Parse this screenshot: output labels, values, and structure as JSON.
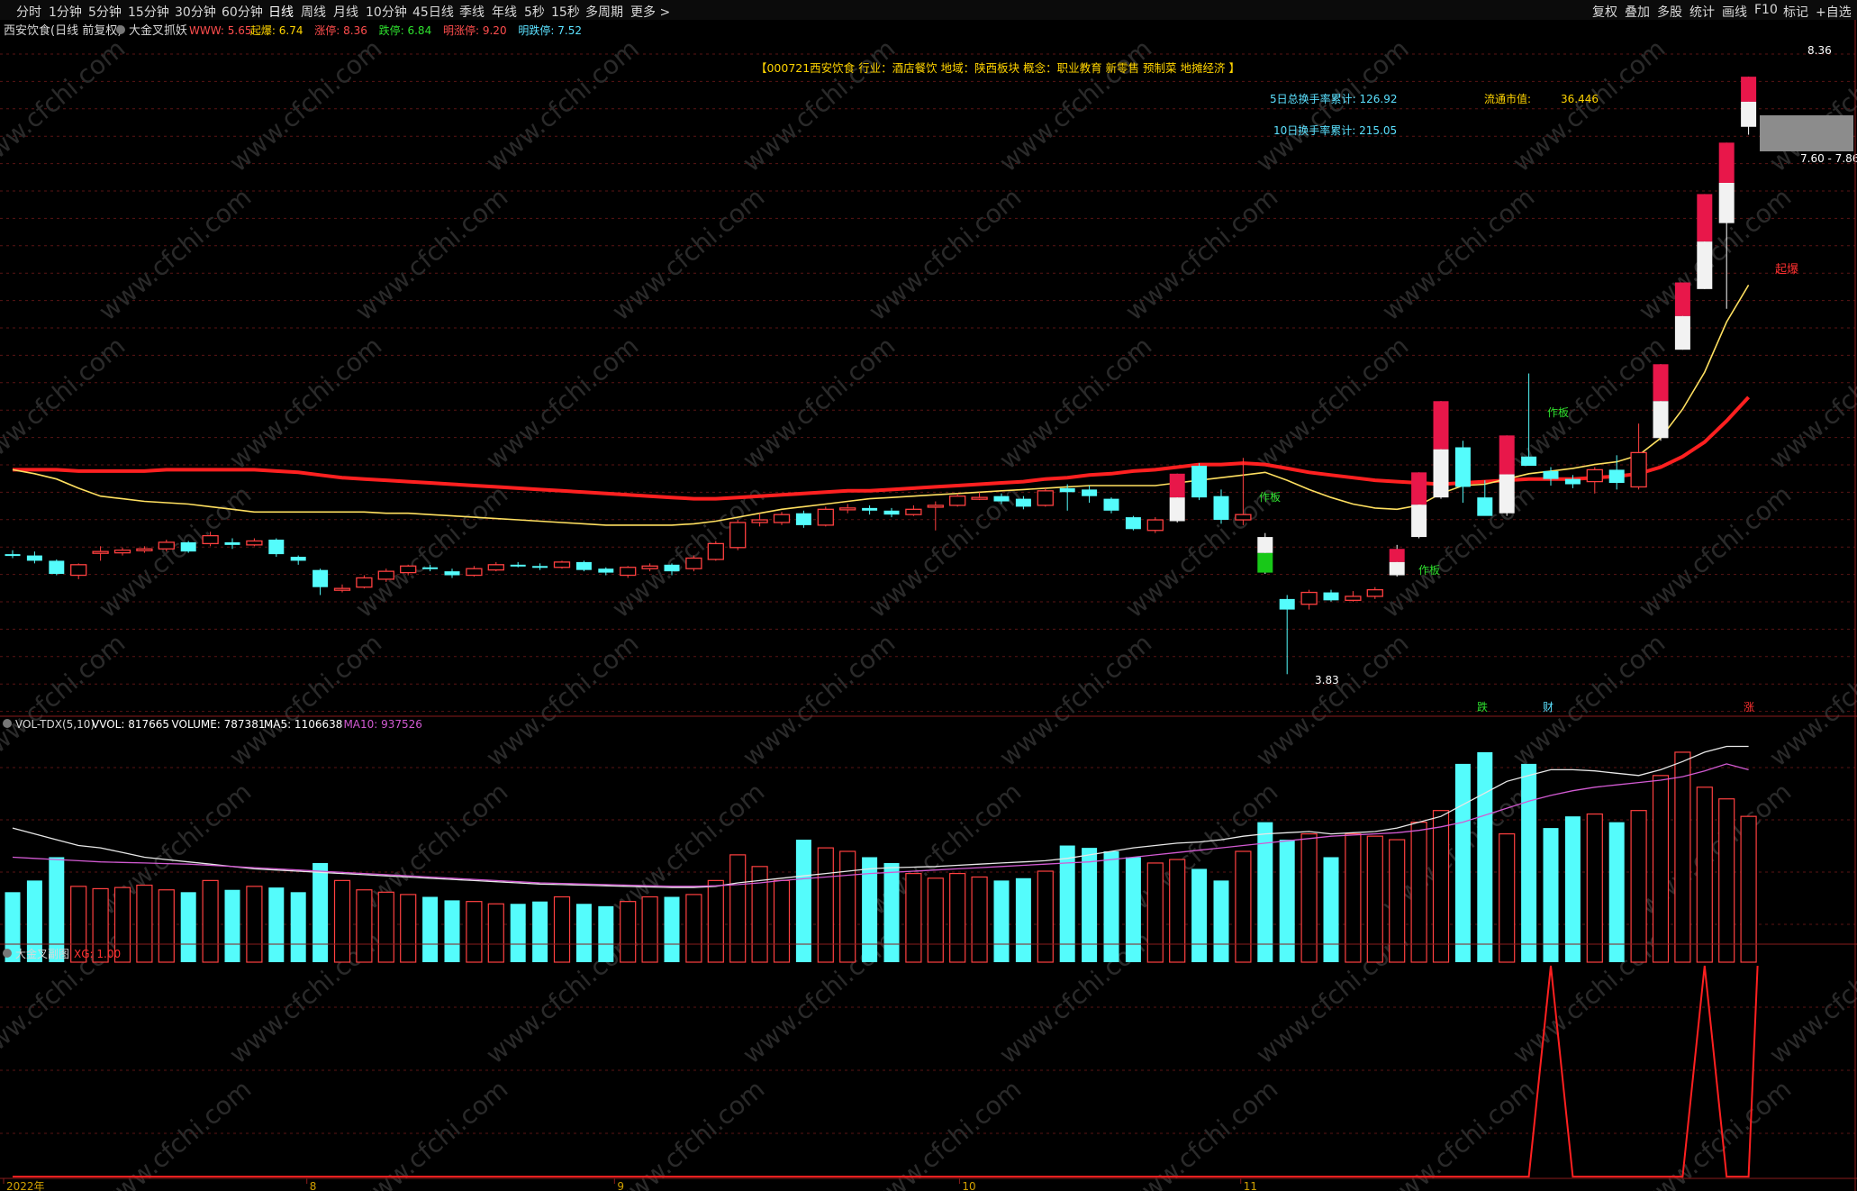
{
  "toolbar": {
    "left": [
      "分时",
      "1分钟",
      "5分钟",
      "15分钟",
      "30分钟",
      "60分钟",
      "日线",
      "周线",
      "月线",
      "10分钟",
      "45日线",
      "季线",
      "年线",
      "5秒",
      "15秒",
      "多周期",
      "更多 >"
    ],
    "right": [
      "复权",
      "叠加",
      "多股",
      "统计",
      "画线",
      "F10",
      "标记",
      "+自选"
    ]
  },
  "main_header": {
    "stock": "西安饮食(日线 前复权)",
    "indicator": "大金叉抓妖",
    "items": [
      {
        "label": "WWW: 5.65",
        "color": "#ff4d4d"
      },
      {
        "label": "起爆: 6.74",
        "color": "#ffd400"
      },
      {
        "label": "涨停: 8.36",
        "color": "#ff4d4d"
      },
      {
        "label": "跌停: 6.84",
        "color": "#2ee02e"
      },
      {
        "label": "明涨停: 9.20",
        "color": "#ff4d4d"
      },
      {
        "label": "明跌停: 7.52",
        "color": "#5be1ff"
      }
    ]
  },
  "info_line": "【000721西安饮食  行业：酒店餐饮  地域：陕西板块  概念：职业教育 新零售 预制菜 地摊经济 】",
  "stats": {
    "turnover5": "5日总换手率累计: 126.92",
    "turnover10": "10日换手率累计: 215.05",
    "float_cap_label": "流通市值:",
    "float_cap_value": "36.446"
  },
  "price_annotations": {
    "high": "8.36",
    "range": "7.60 - 7.86",
    "low": "3.83",
    "qibao": "起爆",
    "zuoban": "作板",
    "bottom_marks": [
      "跌",
      "财",
      "涨"
    ]
  },
  "vol_header": {
    "name": "VOL-TDX(5,10)",
    "items": [
      {
        "label": "VVOL: 817665",
        "color": "#ffffff"
      },
      {
        "label": "VOLUME: 787381",
        "color": "#ffffff"
      },
      {
        "label": "MA5: 1106638",
        "color": "#ffffff"
      },
      {
        "label": "MA10: 937526",
        "color": "#d25ad2"
      }
    ]
  },
  "sub_header": {
    "name": "大金叉副图",
    "items": [
      {
        "label": "XG: 1.00",
        "color": "#ff3030"
      }
    ]
  },
  "x_axis": [
    "2022年",
    "8",
    "9",
    "10",
    "11"
  ],
  "watermark": "www.cfchi.com",
  "colors": {
    "up": "#ff4040",
    "down": "#54fcfc",
    "ma_slow": "#ff2020",
    "ma_fast": "#ffe060",
    "limit_up": "#e8174a",
    "limit_down": "#18c818",
    "vol_ma10": "#d25ad2"
  },
  "chart_data": {
    "type": "candlestick",
    "ylim": [
      3.6,
      8.6
    ],
    "candles": [
      [
        4.74,
        4.73,
        4.77,
        4.71
      ],
      [
        4.73,
        4.69,
        4.76,
        4.67
      ],
      [
        4.69,
        4.59,
        4.7,
        4.58
      ],
      [
        4.58,
        4.66,
        4.67,
        4.55
      ],
      [
        4.75,
        4.76,
        4.8,
        4.69
      ],
      [
        4.75,
        4.77,
        4.79,
        4.73
      ],
      [
        4.77,
        4.78,
        4.8,
        4.75
      ],
      [
        4.78,
        4.83,
        4.85,
        4.76
      ],
      [
        4.83,
        4.76,
        4.84,
        4.75
      ],
      [
        4.82,
        4.88,
        4.91,
        4.8
      ],
      [
        4.83,
        4.81,
        4.86,
        4.78
      ],
      [
        4.81,
        4.84,
        4.86,
        4.8
      ],
      [
        4.85,
        4.74,
        4.86,
        4.72
      ],
      [
        4.72,
        4.69,
        4.73,
        4.66
      ],
      [
        4.62,
        4.49,
        4.63,
        4.43
      ],
      [
        4.47,
        4.48,
        4.51,
        4.45
      ],
      [
        4.49,
        4.56,
        4.58,
        4.48
      ],
      [
        4.55,
        4.61,
        4.63,
        4.53
      ],
      [
        4.6,
        4.65,
        4.66,
        4.58
      ],
      [
        4.64,
        4.63,
        4.66,
        4.61
      ],
      [
        4.61,
        4.58,
        4.63,
        4.56
      ],
      [
        4.58,
        4.63,
        4.65,
        4.57
      ],
      [
        4.62,
        4.66,
        4.68,
        4.61
      ],
      [
        4.66,
        4.65,
        4.68,
        4.64
      ],
      [
        4.65,
        4.64,
        4.67,
        4.62
      ],
      [
        4.64,
        4.68,
        4.69,
        4.63
      ],
      [
        4.68,
        4.62,
        4.69,
        4.61
      ],
      [
        4.63,
        4.6,
        4.64,
        4.58
      ],
      [
        4.58,
        4.64,
        4.65,
        4.56
      ],
      [
        4.63,
        4.65,
        4.67,
        4.61
      ],
      [
        4.66,
        4.61,
        4.67,
        4.58
      ],
      [
        4.63,
        4.71,
        4.73,
        4.61
      ],
      [
        4.7,
        4.82,
        4.84,
        4.69
      ],
      [
        4.79,
        4.98,
        5.0,
        4.77
      ],
      [
        4.98,
        5.0,
        5.05,
        4.95
      ],
      [
        4.98,
        5.04,
        5.06,
        4.96
      ],
      [
        5.05,
        4.96,
        5.07,
        4.94
      ],
      [
        4.96,
        5.08,
        5.1,
        4.95
      ],
      [
        5.09,
        5.09,
        5.12,
        5.05
      ],
      [
        5.09,
        5.07,
        5.11,
        5.04
      ],
      [
        5.07,
        5.04,
        5.09,
        5.02
      ],
      [
        5.04,
        5.08,
        5.11,
        5.03
      ],
      [
        5.11,
        5.11,
        5.14,
        4.92
      ],
      [
        5.11,
        5.18,
        5.2,
        5.1
      ],
      [
        5.17,
        5.17,
        5.21,
        5.15
      ],
      [
        5.18,
        5.14,
        5.2,
        5.12
      ],
      [
        5.16,
        5.1,
        5.18,
        5.08
      ],
      [
        5.11,
        5.22,
        5.24,
        5.1
      ],
      [
        5.24,
        5.21,
        5.27,
        5.07
      ],
      [
        5.23,
        5.18,
        5.26,
        5.13
      ],
      [
        5.16,
        5.07,
        5.17,
        5.05
      ],
      [
        5.02,
        4.93,
        5.03,
        4.92
      ],
      [
        4.92,
        5.0,
        5.02,
        4.9
      ],
      [
        4.99,
        5.35,
        5.35,
        4.98
      ],
      [
        5.41,
        5.17,
        5.43,
        5.15
      ],
      [
        5.18,
        5.0,
        5.23,
        4.97
      ],
      [
        5.0,
        5.04,
        5.47,
        4.96
      ],
      [
        4.87,
        4.6,
        4.9,
        4.59
      ],
      [
        4.4,
        4.32,
        4.43,
        3.83
      ],
      [
        4.36,
        4.45,
        4.47,
        4.32
      ],
      [
        4.45,
        4.39,
        4.47,
        4.38
      ],
      [
        4.39,
        4.42,
        4.46,
        4.38
      ],
      [
        4.42,
        4.47,
        4.49,
        4.4
      ],
      [
        4.58,
        4.78,
        4.81,
        4.57
      ],
      [
        4.87,
        5.36,
        5.36,
        4.86
      ],
      [
        5.17,
        5.9,
        5.9,
        5.16
      ],
      [
        5.55,
        5.25,
        5.6,
        5.13
      ],
      [
        5.17,
        5.03,
        5.3,
        5.13
      ],
      [
        5.05,
        5.64,
        5.64,
        5.03
      ],
      [
        5.48,
        5.41,
        6.11,
        5.41
      ],
      [
        5.37,
        5.31,
        5.4,
        5.26
      ],
      [
        5.31,
        5.27,
        5.34,
        5.24
      ],
      [
        5.29,
        5.38,
        5.4,
        5.2
      ],
      [
        5.38,
        5.28,
        5.49,
        5.23
      ],
      [
        5.25,
        5.51,
        5.73,
        5.23
      ],
      [
        5.62,
        6.18,
        6.18,
        5.6
      ],
      [
        6.29,
        6.8,
        6.8,
        6.29
      ],
      [
        6.75,
        7.47,
        7.47,
        6.75
      ],
      [
        7.25,
        7.86,
        7.86,
        6.6
      ],
      [
        7.98,
        8.36,
        8.36,
        7.92
      ]
    ],
    "limit_up_index": [
      53,
      63,
      64,
      65,
      68,
      75,
      76,
      77,
      78,
      79
    ],
    "limit_down_index": [
      57
    ],
    "ma_slow": [
      5.38,
      5.38,
      5.38,
      5.37,
      5.37,
      5.37,
      5.37,
      5.38,
      5.38,
      5.38,
      5.38,
      5.38,
      5.37,
      5.36,
      5.34,
      5.32,
      5.31,
      5.3,
      5.29,
      5.28,
      5.27,
      5.26,
      5.25,
      5.24,
      5.23,
      5.22,
      5.21,
      5.2,
      5.19,
      5.18,
      5.17,
      5.16,
      5.16,
      5.17,
      5.18,
      5.19,
      5.2,
      5.21,
      5.22,
      5.22,
      5.23,
      5.24,
      5.25,
      5.26,
      5.27,
      5.28,
      5.29,
      5.31,
      5.32,
      5.34,
      5.35,
      5.37,
      5.38,
      5.4,
      5.42,
      5.42,
      5.43,
      5.42,
      5.39,
      5.36,
      5.34,
      5.32,
      5.3,
      5.29,
      5.28,
      5.27,
      5.28,
      5.29,
      5.3,
      5.31,
      5.31,
      5.31,
      5.32,
      5.33,
      5.35,
      5.4,
      5.48,
      5.59,
      5.75,
      5.93
    ],
    "ma_fast": [
      5.38,
      5.35,
      5.31,
      5.24,
      5.18,
      5.16,
      5.14,
      5.13,
      5.12,
      5.1,
      5.08,
      5.06,
      5.06,
      5.06,
      5.06,
      5.06,
      5.06,
      5.05,
      5.05,
      5.04,
      5.03,
      5.02,
      5.01,
      5.0,
      4.99,
      4.98,
      4.97,
      4.96,
      4.96,
      4.96,
      4.96,
      4.97,
      4.99,
      5.02,
      5.05,
      5.08,
      5.1,
      5.12,
      5.14,
      5.16,
      5.17,
      5.18,
      5.19,
      5.2,
      5.21,
      5.22,
      5.23,
      5.24,
      5.25,
      5.26,
      5.26,
      5.26,
      5.26,
      5.28,
      5.3,
      5.32,
      5.34,
      5.36,
      5.3,
      5.23,
      5.17,
      5.12,
      5.09,
      5.08,
      5.11,
      5.2,
      5.26,
      5.27,
      5.31,
      5.35,
      5.37,
      5.39,
      5.42,
      5.44,
      5.49,
      5.62,
      5.84,
      6.12,
      6.5,
      6.78
    ],
    "volume": [
      600,
      700,
      900,
      650,
      630,
      640,
      660,
      620,
      600,
      700,
      620,
      650,
      640,
      600,
      850,
      700,
      620,
      600,
      580,
      560,
      530,
      520,
      500,
      500,
      520,
      560,
      500,
      480,
      520,
      560,
      560,
      580,
      700,
      920,
      820,
      700,
      1050,
      980,
      950,
      900,
      850,
      760,
      720,
      760,
      730,
      700,
      720,
      780,
      1000,
      980,
      950,
      900,
      850,
      880,
      800,
      700,
      950,
      1200,
      1050,
      1100,
      900,
      1100,
      1080,
      1050,
      1200,
      1300,
      1700,
      1800,
      1100,
      1700,
      1150,
      1250,
      1270,
      1200,
      1300,
      1600,
      1800,
      1500,
      1400,
      1250
    ],
    "vol_ma5": [
      1150,
      1100,
      1050,
      1000,
      980,
      940,
      900,
      880,
      860,
      840,
      820,
      800,
      790,
      780,
      770,
      760,
      750,
      740,
      730,
      720,
      710,
      700,
      690,
      680,
      670,
      665,
      660,
      655,
      650,
      645,
      640,
      640,
      650,
      680,
      700,
      720,
      740,
      760,
      780,
      800,
      810,
      815,
      820,
      830,
      840,
      850,
      860,
      870,
      890,
      920,
      950,
      980,
      1000,
      1020,
      1030,
      1050,
      1080,
      1100,
      1110,
      1120,
      1100,
      1110,
      1120,
      1150,
      1200,
      1250,
      1350,
      1450,
      1550,
      1600,
      1650,
      1650,
      1640,
      1620,
      1600,
      1650,
      1720,
      1800,
      1850,
      1850
    ],
    "vol_ma10": [
      900,
      890,
      880,
      870,
      860,
      855,
      850,
      845,
      840,
      830,
      820,
      810,
      800,
      790,
      780,
      770,
      760,
      750,
      740,
      730,
      720,
      710,
      700,
      690,
      680,
      675,
      670,
      665,
      660,
      655,
      650,
      650,
      655,
      665,
      680,
      700,
      715,
      730,
      745,
      760,
      770,
      780,
      790,
      800,
      810,
      820,
      830,
      840,
      850,
      860,
      880,
      900,
      920,
      940,
      960,
      980,
      1000,
      1020,
      1040,
      1060,
      1080,
      1090,
      1100,
      1110,
      1130,
      1160,
      1200,
      1260,
      1320,
      1380,
      1430,
      1470,
      1500,
      1520,
      1540,
      1560,
      1590,
      1640,
      1700,
      1650
    ],
    "xg_peaks": [
      70,
      77
    ]
  }
}
